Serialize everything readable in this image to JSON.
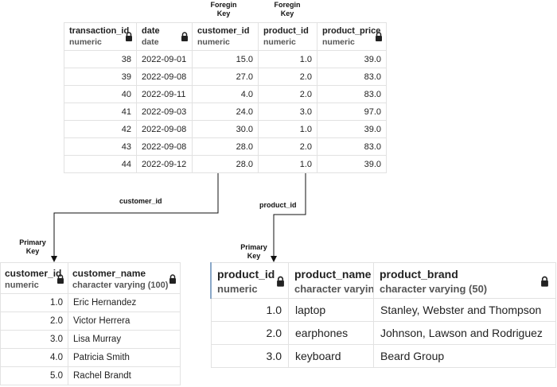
{
  "labels": {
    "fk1": [
      "Foregin",
      "Key"
    ],
    "fk2": [
      "Foregin",
      "Key"
    ],
    "pk1": [
      "Primary",
      "Key"
    ],
    "pk2": [
      "Primary",
      "Key"
    ],
    "rel_customer": "customer_id",
    "rel_product": "product_id"
  },
  "transactions": {
    "columns": [
      {
        "name": "transaction_id",
        "type": "numeric"
      },
      {
        "name": "date",
        "type": "date"
      },
      {
        "name": "customer_id",
        "type": "numeric"
      },
      {
        "name": "product_id",
        "type": "numeric"
      },
      {
        "name": "product_price",
        "type": "numeric"
      }
    ],
    "rows": [
      [
        "38",
        "2022-09-01",
        "15.0",
        "1.0",
        "39.0"
      ],
      [
        "39",
        "2022-09-08",
        "27.0",
        "2.0",
        "83.0"
      ],
      [
        "40",
        "2022-09-11",
        "4.0",
        "2.0",
        "83.0"
      ],
      [
        "41",
        "2022-09-03",
        "24.0",
        "3.0",
        "97.0"
      ],
      [
        "42",
        "2022-09-08",
        "30.0",
        "1.0",
        "39.0"
      ],
      [
        "43",
        "2022-09-08",
        "28.0",
        "2.0",
        "83.0"
      ],
      [
        "44",
        "2022-09-12",
        "28.0",
        "1.0",
        "39.0"
      ]
    ]
  },
  "customers": {
    "columns": [
      {
        "name": "customer_id",
        "type": "numeric"
      },
      {
        "name": "customer_name",
        "type": "character varying (100)"
      }
    ],
    "rows": [
      [
        "1.0",
        "Eric Hernandez"
      ],
      [
        "2.0",
        "Victor Herrera"
      ],
      [
        "3.0",
        "Lisa Murray"
      ],
      [
        "4.0",
        "Patricia Smith"
      ],
      [
        "5.0",
        "Rachel Brandt"
      ]
    ]
  },
  "products": {
    "columns": [
      {
        "name": "product_id",
        "type": "numeric"
      },
      {
        "name": "product_name",
        "type": "character varying"
      },
      {
        "name": "product_brand",
        "type": "character varying (50)"
      }
    ],
    "rows": [
      [
        "1.0",
        "laptop",
        "Stanley, Webster and Thompson"
      ],
      [
        "2.0",
        "earphones",
        "Johnson, Lawson and Rodriguez"
      ],
      [
        "3.0",
        "keyboard",
        "Beard Group"
      ]
    ]
  }
}
